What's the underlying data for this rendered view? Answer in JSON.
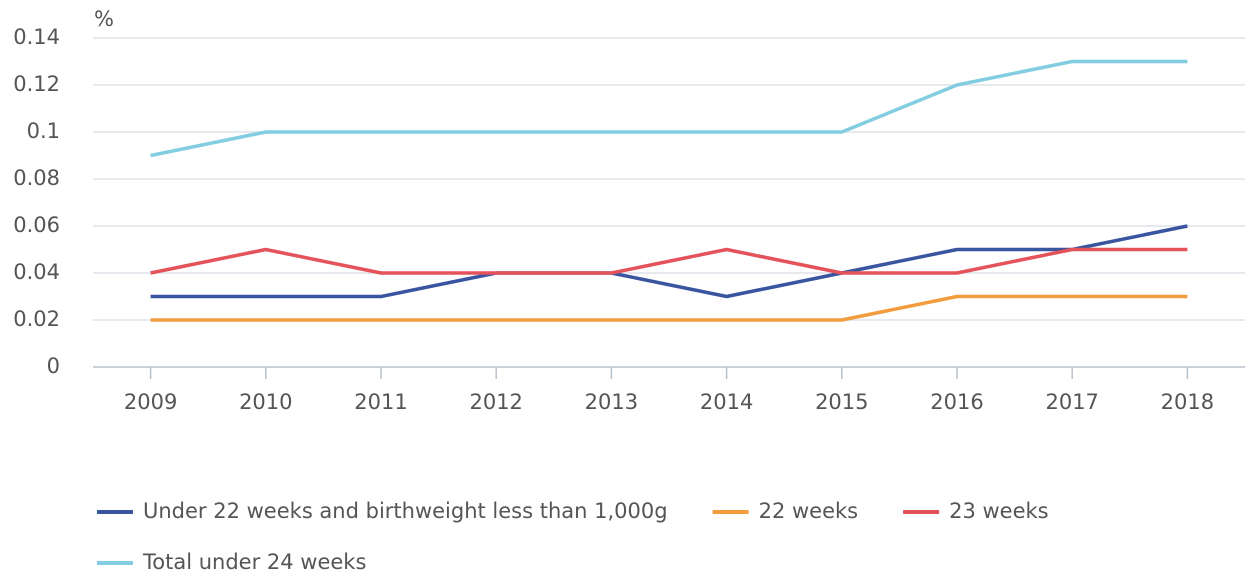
{
  "chart_data": {
    "type": "line",
    "y_label": "%",
    "categories": [
      "2009",
      "2010",
      "2011",
      "2012",
      "2013",
      "2014",
      "2015",
      "2016",
      "2017",
      "2018"
    ],
    "series": [
      {
        "name": "Under 22 weeks and birthweight less than 1,000g",
        "color": "#3a55a0",
        "values": [
          0.03,
          0.03,
          0.03,
          0.04,
          0.04,
          0.03,
          0.04,
          0.05,
          0.05,
          0.06
        ]
      },
      {
        "name": "22 weeks",
        "color": "#f39c3d",
        "values": [
          0.02,
          0.02,
          0.02,
          0.02,
          0.02,
          0.02,
          0.02,
          0.03,
          0.03,
          0.03
        ]
      },
      {
        "name": "23 weeks",
        "color": "#e4525a",
        "values": [
          0.04,
          0.05,
          0.04,
          0.04,
          0.04,
          0.05,
          0.04,
          0.04,
          0.05,
          0.05
        ]
      },
      {
        "name": "Total under 24 weeks",
        "color": "#82cde0",
        "values": [
          0.09,
          0.1,
          0.1,
          0.1,
          0.1,
          0.1,
          0.1,
          0.12,
          0.13,
          0.13
        ]
      }
    ],
    "ylim": [
      0,
      0.14
    ],
    "yticks": [
      0,
      0.02,
      0.04,
      0.06,
      0.08,
      0.1,
      0.12,
      0.14
    ],
    "grid": true
  }
}
